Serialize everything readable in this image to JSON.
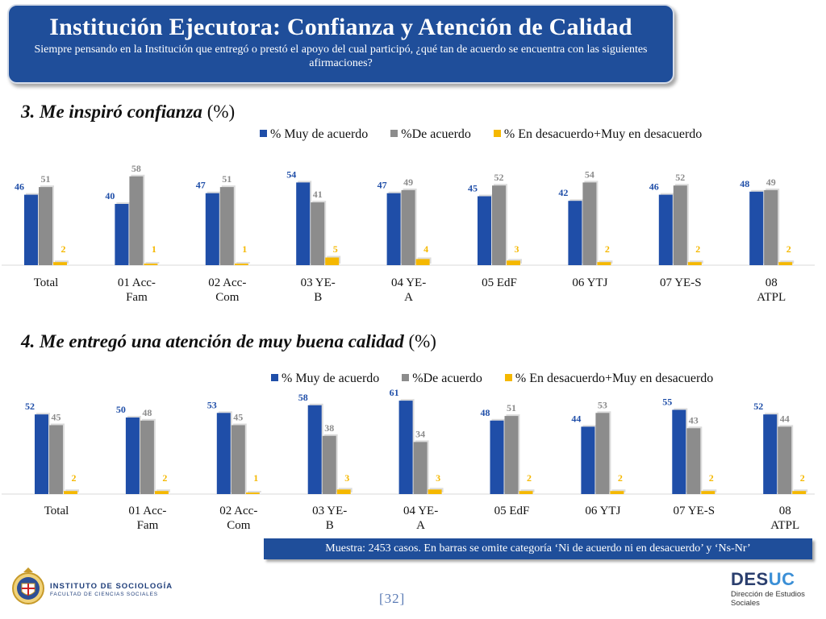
{
  "header": {
    "title": "Institución Ejecutora: Confianza y Atención de Calidad",
    "subtitle": "Siempre pensando en la Institución que entregó o prestó el apoyo del cual participó, ¿qué tan de acuerdo se encuentra con las siguientes afirmaciones?"
  },
  "colors": {
    "series1": "#1f4ea8",
    "series2": "#8c8c8c",
    "series3": "#f5b800",
    "header": "#1f4e9a"
  },
  "chart_data": [
    {
      "type": "bar",
      "title_main": "3. Me inspiró confianza",
      "title_unit": "(%)",
      "categories": [
        "Total",
        "01 Acc-\nFam",
        "02 Acc-\nCom",
        "03 YE-\nB",
        "04 YE-\nA",
        "05 EdF",
        "06 YTJ",
        "07 YE-S",
        "08\nATPL"
      ],
      "series": [
        {
          "name": "% Muy de acuerdo",
          "values": [
            46,
            40,
            47,
            54,
            47,
            45,
            42,
            46,
            48
          ]
        },
        {
          "name": "%De acuerdo",
          "values": [
            51,
            58,
            51,
            41,
            49,
            52,
            54,
            52,
            49
          ]
        },
        {
          "name": "% En desacuerdo+Muy en desacuerdo",
          "values": [
            2,
            1,
            1,
            5,
            4,
            3,
            2,
            2,
            2
          ]
        }
      ],
      "legend_position": "top",
      "grid": false
    },
    {
      "type": "bar",
      "title_main": "4. Me entregó una atención de muy buena calidad",
      "title_unit": "(%)",
      "categories": [
        "Total",
        "01 Acc-\nFam",
        "02 Acc-\nCom",
        "03 YE-\nB",
        "04 YE-\nA",
        "05 EdF",
        "06 YTJ",
        "07 YE-S",
        "08\nATPL"
      ],
      "series": [
        {
          "name": "% Muy de acuerdo",
          "values": [
            52,
            50,
            53,
            58,
            61,
            48,
            44,
            55,
            52
          ]
        },
        {
          "name": "%De acuerdo",
          "values": [
            45,
            48,
            45,
            38,
            34,
            51,
            53,
            43,
            44
          ]
        },
        {
          "name": "% En desacuerdo+Muy en desacuerdo",
          "values": [
            2,
            2,
            1,
            3,
            3,
            2,
            2,
            2,
            2
          ]
        }
      ],
      "legend_position": "top",
      "grid": false
    }
  ],
  "note": "Muestra: 2453 casos. En barras se omite categoría ‘Ni de acuerdo ni en desacuerdo’ y ‘Ns-Nr’",
  "page_number": "[32]",
  "footer": {
    "institute_line1": "INSTITUTO DE SOCIOLOGÍA",
    "institute_line2": "FACULTAD DE CIENCIAS SOCIALES",
    "desuc_logo_a": "DES",
    "desuc_logo_b": "UC",
    "desuc_line1": "Dirección de Estudios",
    "desuc_line2": "Sociales"
  }
}
